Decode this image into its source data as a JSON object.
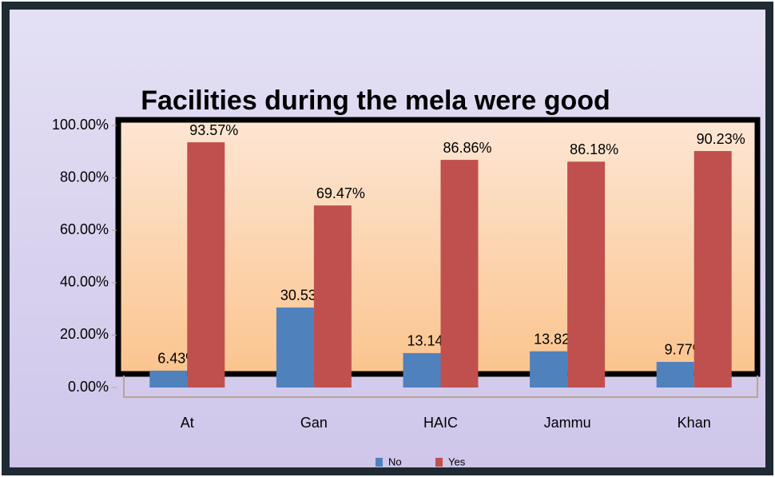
{
  "chart_data": {
    "type": "bar",
    "title": "Facilities during the mela were good",
    "categories": [
      "At",
      "Gan",
      "HAIC",
      "Jammu",
      "Khan"
    ],
    "series": [
      {
        "name": "No",
        "color": "#4f81bd",
        "values": [
          6.43,
          30.53,
          13.14,
          13.82,
          9.77
        ],
        "value_labels": [
          "6.43%",
          "30.53%",
          "13.14%",
          "13.82%",
          "9.77%"
        ]
      },
      {
        "name": "Yes",
        "color": "#c0504d",
        "values": [
          93.57,
          69.47,
          86.86,
          86.18,
          90.23
        ],
        "value_labels": [
          "93.57%",
          "69.47%",
          "86.86%",
          "86.18%",
          "90.23%"
        ]
      }
    ],
    "ylim": [
      0,
      100
    ],
    "yticks": [
      {
        "value": 0,
        "label": "0.00%"
      },
      {
        "value": 20,
        "label": "20.00%"
      },
      {
        "value": 40,
        "label": "40.00%"
      },
      {
        "value": 60,
        "label": "60.00%"
      },
      {
        "value": 80,
        "label": "80.00%"
      },
      {
        "value": 100,
        "label": "100.00%"
      }
    ],
    "legend": "bottom"
  }
}
